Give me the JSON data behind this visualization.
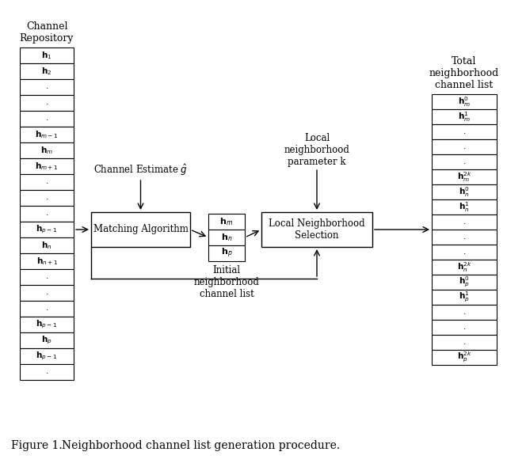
{
  "title": "Figure 1.",
  "caption": "Neighborhood channel list generation procedure.",
  "bg_color": "#ffffff",
  "left_title": "Channel\nRepository",
  "right_title": "Total\nneighborhood\nchannel list",
  "box1_label": "Matching Algorithm",
  "box2_label": "Local Neighborhood\nSelection",
  "label_channel_estimate": "Channel Estimate $\\hat{g}$",
  "label_local_neighborhood": "Local\nneighborhood\nparameter k",
  "label_initial_neighborhood": "Initial\nneighborhood\nchannel list",
  "left_labels": [
    "$\\mathbf{h}_1$",
    "$\\mathbf{h}_2$",
    "$.$",
    "$.$",
    "$.$",
    "$\\mathbf{h}_{m-1}$",
    "$\\mathbf{h}_m$",
    "$\\mathbf{h}_{m+1}$",
    "$.$",
    "$.$",
    "$.$",
    "$\\mathbf{h}_{p-1}$",
    "$\\mathbf{h}_n$",
    "$\\mathbf{h}_{n+1}$",
    "$.$",
    "$.$",
    "$.$",
    "$\\mathbf{h}_{p-1}$",
    "$\\mathbf{h}_p$",
    "$\\mathbf{h}_{p-1}$",
    "$.$"
  ],
  "mid_labels": [
    "$\\mathbf{h}_m$",
    "$\\mathbf{h}_n$",
    "$\\mathbf{h}_p$"
  ],
  "right_labels": [
    "$\\mathbf{h}_m^0$",
    "$\\mathbf{h}_m^1$",
    "$.$",
    "$.$",
    "$.$",
    "$\\mathbf{h}_m^{2k}$",
    "$\\mathbf{h}_n^0$",
    "$\\mathbf{h}_n^1$",
    "$.$",
    "$.$",
    "$.$",
    "$\\mathbf{h}_n^{2k}$",
    "$\\mathbf{h}_p^0$",
    "$\\mathbf{h}_p^1$",
    "$.$",
    "$.$",
    "$.$",
    "$\\mathbf{h}_p^{2k}$"
  ]
}
